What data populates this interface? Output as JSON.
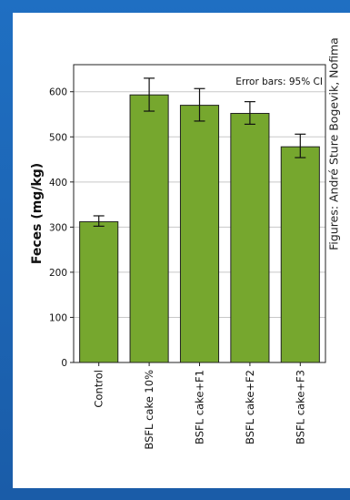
{
  "chart_data": {
    "type": "bar",
    "categories": [
      "Control",
      "BSFL cake 10%",
      "BSFL cake+F1",
      "BSFL cake+F2",
      "BSFL cake+F3"
    ],
    "values": [
      312,
      593,
      570,
      552,
      478
    ],
    "error_low": [
      302,
      557,
      535,
      528,
      454
    ],
    "error_high": [
      325,
      630,
      607,
      578,
      506
    ],
    "ylabel": "Feces (mg/kg)",
    "xlabel": "",
    "ylim": [
      0,
      660
    ],
    "yticks": [
      0,
      100,
      200,
      300,
      400,
      500,
      600
    ],
    "grid": "horizontal",
    "annotation": "Error bars: 95% CI",
    "bar_color": "#76a72e",
    "bar_edge": "#222222"
  },
  "credit_text": "Figures: André Sture Bogevik, Nofima",
  "colors": {
    "frame": "#1d64b4",
    "panel": "#ffffff"
  }
}
